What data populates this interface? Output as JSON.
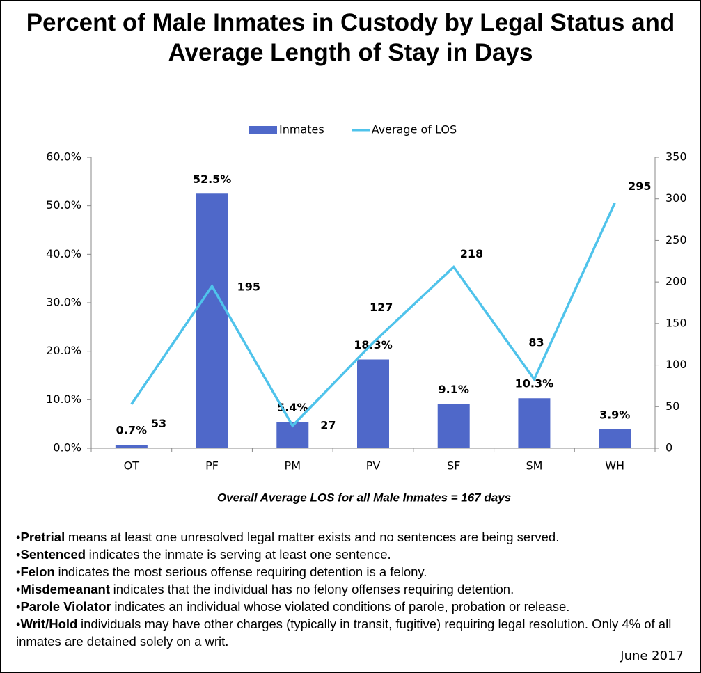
{
  "chart_data": {
    "type": "bar",
    "title": "Percent of Male Inmates in Custody by Legal Status and Average Length of Stay in Days",
    "categories": [
      "OT",
      "PF",
      "PM",
      "PV",
      "SF",
      "SM",
      "WH"
    ],
    "series": [
      {
        "name": "Inmates",
        "type": "bar",
        "color": "#4f68c9",
        "values": [
          0.7,
          52.5,
          5.4,
          18.3,
          9.1,
          10.3,
          3.9
        ],
        "value_labels": [
          "0.7%",
          "52.5%",
          "5.4%",
          "18.3%",
          "9.1%",
          "10.3%",
          "3.9%"
        ]
      },
      {
        "name": "Average of LOS",
        "type": "line",
        "axis": "y2",
        "color": "#4fc3eb",
        "values": [
          53,
          195,
          27,
          127,
          218,
          83,
          295
        ]
      }
    ],
    "ylim": [
      0,
      60
    ],
    "yticks": [
      {
        "value": 0,
        "label": "0.0%"
      },
      {
        "value": 10,
        "label": "10.0%"
      },
      {
        "value": 20,
        "label": "20.0%"
      },
      {
        "value": 30,
        "label": "30.0%"
      },
      {
        "value": 40,
        "label": "40.0%"
      },
      {
        "value": 50,
        "label": "50.0%"
      },
      {
        "value": 60,
        "label": "60.0%"
      }
    ],
    "y2lim": [
      0,
      350
    ],
    "y2ticks": [
      0,
      50,
      100,
      150,
      200,
      250,
      300,
      350
    ],
    "legend": "top",
    "grid": false,
    "annotation": "Overall Average LOS for all Male Inmates = 167 days"
  },
  "notes": [
    {
      "term": "Pretrial",
      "text": "means at least one unresolved legal matter exists and no sentences are being served."
    },
    {
      "term": "Sentenced",
      "text": "indicates the inmate is serving at least one sentence."
    },
    {
      "term": "Felon",
      "text": "indicates the most serious offense requiring detention is a felony."
    },
    {
      "term": "Misdemeanant",
      "text": "indicates that the individual has no felony offenses requiring detention."
    },
    {
      "term": "Parole Violator",
      "text": "indicates an individual whose violated conditions of parole, probation or release."
    },
    {
      "term": "Writ/Hold",
      "text": "individuals may have other charges (typically in transit, fugitive) requiring legal resolution. Only 4% of all inmates are detained solely on a writ."
    }
  ],
  "date": "June 2017"
}
